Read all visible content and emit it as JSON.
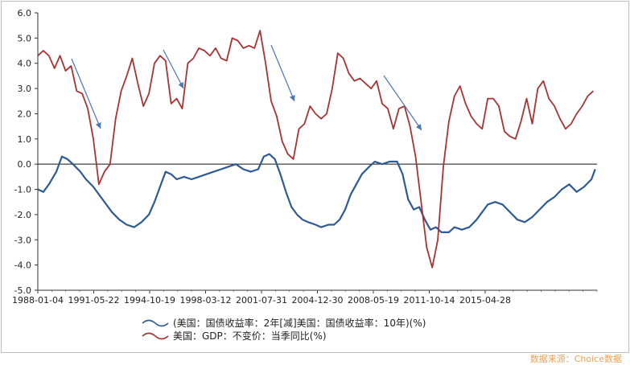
{
  "chart_data": {
    "type": "line",
    "title": "",
    "xlabel": "",
    "ylabel": "",
    "ylim": [
      -5.0,
      6.0
    ],
    "x_tick_labels": [
      "1988-01-04",
      "1991-05-22",
      "1994-10-19",
      "1998-03-12",
      "2001-07-31",
      "2004-12-30",
      "2008-05-19",
      "2011-10-14",
      "2015-04-28"
    ],
    "y_tick_labels": [
      "6.0",
      "5.0",
      "4.0",
      "3.0",
      "2.0",
      "1.0",
      "0.0",
      "-1.0",
      "-2.0",
      "-3.0",
      "-4.0",
      "-5.0"
    ],
    "y_tick_values": [
      6,
      5,
      4,
      3,
      2,
      1,
      0,
      -1,
      -2,
      -3,
      -4,
      -5
    ],
    "x_range": [
      1988.0,
      2018.2
    ],
    "grid": false,
    "zero_line": true,
    "legend_position": "bottom",
    "series": [
      {
        "name": "(美国：国债收益率：2年[减]美国：国债收益率：10年)(%)",
        "color": "#2f5b93",
        "x": [
          1988.0,
          1988.3,
          1988.6,
          1989.0,
          1989.3,
          1989.6,
          1989.9,
          1990.3,
          1990.6,
          1991.0,
          1991.3,
          1991.6,
          1992.0,
          1992.4,
          1992.8,
          1993.2,
          1993.6,
          1994.0,
          1994.3,
          1994.6,
          1994.9,
          1995.2,
          1995.5,
          1995.9,
          1996.3,
          1996.7,
          1997.1,
          1997.5,
          1997.9,
          1998.3,
          1998.7,
          1999.1,
          1999.5,
          1999.9,
          2000.2,
          2000.5,
          2000.8,
          2001.1,
          2001.4,
          2001.7,
          2002.0,
          2002.3,
          2002.6,
          2003.0,
          2003.3,
          2003.7,
          2004.0,
          2004.3,
          2004.6,
          2004.9,
          2005.2,
          2005.5,
          2005.9,
          2006.2,
          2006.6,
          2007.0,
          2007.4,
          2007.7,
          2008.0,
          2008.3,
          2008.6,
          2008.9,
          2009.2,
          2009.5,
          2009.8,
          2010.2,
          2010.5,
          2010.9,
          2011.3,
          2011.7,
          2012.0,
          2012.3,
          2012.7,
          2013.1,
          2013.5,
          2013.9,
          2014.3,
          2014.7,
          2015.1,
          2015.5,
          2015.9,
          2016.3,
          2016.7,
          2017.1,
          2017.5,
          2017.9,
          2018.1
        ],
        "y": [
          -1.0,
          -1.1,
          -0.8,
          -0.3,
          0.3,
          0.2,
          0.0,
          -0.3,
          -0.6,
          -0.9,
          -1.2,
          -1.5,
          -1.9,
          -2.2,
          -2.4,
          -2.5,
          -2.3,
          -2.0,
          -1.5,
          -0.9,
          -0.3,
          -0.4,
          -0.6,
          -0.5,
          -0.6,
          -0.5,
          -0.4,
          -0.3,
          -0.2,
          -0.1,
          0.0,
          -0.2,
          -0.3,
          -0.2,
          0.3,
          0.4,
          0.2,
          -0.4,
          -1.1,
          -1.7,
          -2.0,
          -2.2,
          -2.3,
          -2.4,
          -2.5,
          -2.4,
          -2.4,
          -2.2,
          -1.8,
          -1.2,
          -0.8,
          -0.4,
          -0.1,
          0.1,
          0.0,
          0.1,
          0.1,
          -0.4,
          -1.4,
          -1.8,
          -1.7,
          -2.2,
          -2.6,
          -2.5,
          -2.7,
          -2.7,
          -2.5,
          -2.6,
          -2.5,
          -2.2,
          -1.9,
          -1.6,
          -1.5,
          -1.6,
          -1.9,
          -2.2,
          -2.3,
          -2.1,
          -1.8,
          -1.5,
          -1.3,
          -1.0,
          -0.8,
          -1.1,
          -0.9,
          -0.6,
          -0.2
        ]
      },
      {
        "name": "美国：GDP：不变价：当季同比(%)",
        "color": "#a93332",
        "x": [
          1988.0,
          1988.3,
          1988.6,
          1988.9,
          1989.2,
          1989.5,
          1989.8,
          1990.1,
          1990.4,
          1990.7,
          1991.0,
          1991.3,
          1991.6,
          1991.9,
          1992.2,
          1992.5,
          1992.8,
          1993.1,
          1993.4,
          1993.7,
          1994.0,
          1994.3,
          1994.6,
          1994.9,
          1995.2,
          1995.5,
          1995.8,
          1996.1,
          1996.4,
          1996.7,
          1997.0,
          1997.3,
          1997.6,
          1997.9,
          1998.2,
          1998.5,
          1998.8,
          1999.1,
          1999.4,
          1999.7,
          2000.0,
          2000.3,
          2000.6,
          2000.9,
          2001.2,
          2001.5,
          2001.8,
          2002.1,
          2002.4,
          2002.7,
          2003.0,
          2003.3,
          2003.6,
          2003.9,
          2004.2,
          2004.5,
          2004.8,
          2005.1,
          2005.4,
          2005.7,
          2006.0,
          2006.3,
          2006.6,
          2006.9,
          2007.2,
          2007.5,
          2007.8,
          2008.1,
          2008.4,
          2008.7,
          2009.0,
          2009.3,
          2009.6,
          2009.9,
          2010.2,
          2010.5,
          2010.8,
          2011.1,
          2011.4,
          2011.7,
          2012.0,
          2012.3,
          2012.6,
          2012.9,
          2013.2,
          2013.5,
          2013.8,
          2014.1,
          2014.4,
          2014.7,
          2015.0,
          2015.3,
          2015.6,
          2015.9,
          2016.2,
          2016.5,
          2016.8,
          2017.1,
          2017.4,
          2017.7,
          2018.0
        ],
        "y": [
          4.3,
          4.5,
          4.3,
          3.8,
          4.3,
          3.7,
          3.9,
          2.9,
          2.8,
          2.2,
          1.0,
          -0.8,
          -0.3,
          0.0,
          1.8,
          2.9,
          3.5,
          4.2,
          3.2,
          2.3,
          2.8,
          4.0,
          4.3,
          4.1,
          2.4,
          2.6,
          2.2,
          4.0,
          4.2,
          4.6,
          4.5,
          4.3,
          4.6,
          4.2,
          4.1,
          5.0,
          4.9,
          4.6,
          4.7,
          4.6,
          5.3,
          4.0,
          2.5,
          1.9,
          0.9,
          0.4,
          0.2,
          1.4,
          1.6,
          2.3,
          2.0,
          1.8,
          2.0,
          3.0,
          4.4,
          4.2,
          3.6,
          3.3,
          3.4,
          3.2,
          3.0,
          3.3,
          2.4,
          2.2,
          1.4,
          2.2,
          2.3,
          1.5,
          0.3,
          -1.5,
          -3.3,
          -4.1,
          -3.0,
          -0.1,
          1.7,
          2.7,
          3.1,
          2.4,
          1.9,
          1.6,
          1.4,
          2.6,
          2.6,
          2.3,
          1.3,
          1.1,
          1.0,
          1.7,
          2.6,
          1.6,
          3.0,
          3.3,
          2.6,
          2.3,
          1.8,
          1.4,
          1.6,
          2.0,
          2.3,
          2.7,
          2.9
        ]
      }
    ],
    "annotations": "trend arrows"
  },
  "legend": {
    "series1": "(美国：国债收益率：2年[减]美国：国债收益率：10年)(%)",
    "series2": "美国：GDP：不变价：当季同比(%)"
  },
  "source": "数据来源：Choice数据"
}
